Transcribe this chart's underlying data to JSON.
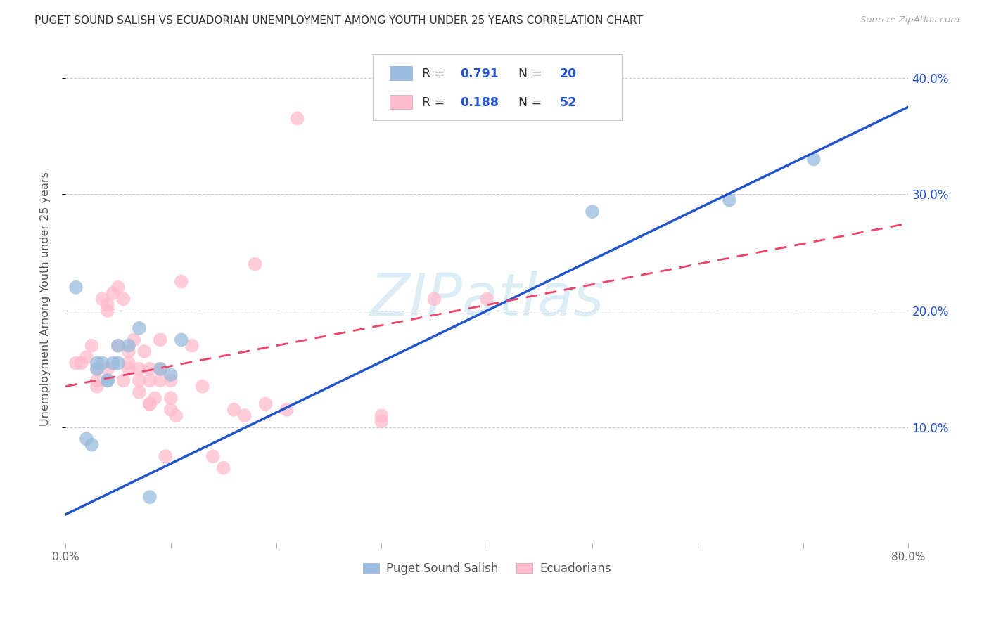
{
  "title": "PUGET SOUND SALISH VS ECUADORIAN UNEMPLOYMENT AMONG YOUTH UNDER 25 YEARS CORRELATION CHART",
  "source": "Source: ZipAtlas.com",
  "ylabel": "Unemployment Among Youth under 25 years",
  "xlim": [
    0.0,
    0.8
  ],
  "ylim": [
    0.0,
    0.42
  ],
  "xticks": [
    0.0,
    0.1,
    0.2,
    0.3,
    0.4,
    0.5,
    0.6,
    0.7,
    0.8
  ],
  "yticks_right": [
    0.1,
    0.2,
    0.3,
    0.4
  ],
  "yticklabels_right": [
    "10.0%",
    "20.0%",
    "30.0%",
    "40.0%"
  ],
  "grid_color": "#cccccc",
  "background_color": "#ffffff",
  "blue_color": "#99bbdd",
  "pink_color": "#ffbbcc",
  "blue_line_color": "#2255cc",
  "pink_line_color": "#ee4466",
  "title_color": "#333333",
  "source_color": "#aaaaaa",
  "R_blue": 0.791,
  "N_blue": 20,
  "R_pink": 0.188,
  "N_pink": 52,
  "blue_scatter_x": [
    0.01,
    0.02,
    0.025,
    0.03,
    0.03,
    0.035,
    0.04,
    0.04,
    0.045,
    0.05,
    0.05,
    0.06,
    0.07,
    0.08,
    0.09,
    0.1,
    0.11,
    0.5,
    0.63,
    0.71
  ],
  "blue_scatter_y": [
    0.22,
    0.09,
    0.085,
    0.15,
    0.155,
    0.155,
    0.14,
    0.14,
    0.155,
    0.155,
    0.17,
    0.17,
    0.185,
    0.04,
    0.15,
    0.145,
    0.175,
    0.285,
    0.295,
    0.33
  ],
  "pink_scatter_x": [
    0.01,
    0.015,
    0.02,
    0.025,
    0.03,
    0.03,
    0.03,
    0.035,
    0.04,
    0.04,
    0.04,
    0.045,
    0.05,
    0.05,
    0.055,
    0.055,
    0.06,
    0.06,
    0.06,
    0.065,
    0.07,
    0.07,
    0.07,
    0.075,
    0.08,
    0.08,
    0.08,
    0.08,
    0.085,
    0.09,
    0.09,
    0.09,
    0.095,
    0.1,
    0.1,
    0.1,
    0.105,
    0.11,
    0.12,
    0.13,
    0.14,
    0.15,
    0.16,
    0.17,
    0.18,
    0.19,
    0.21,
    0.22,
    0.3,
    0.3,
    0.35,
    0.4
  ],
  "pink_scatter_y": [
    0.155,
    0.155,
    0.16,
    0.17,
    0.15,
    0.14,
    0.135,
    0.21,
    0.2,
    0.205,
    0.15,
    0.215,
    0.17,
    0.22,
    0.14,
    0.21,
    0.15,
    0.155,
    0.165,
    0.175,
    0.14,
    0.13,
    0.15,
    0.165,
    0.12,
    0.12,
    0.14,
    0.15,
    0.125,
    0.14,
    0.15,
    0.175,
    0.075,
    0.14,
    0.125,
    0.115,
    0.11,
    0.225,
    0.17,
    0.135,
    0.075,
    0.065,
    0.115,
    0.11,
    0.24,
    0.12,
    0.115,
    0.365,
    0.105,
    0.11,
    0.21,
    0.21
  ],
  "legend_blue_label": "Puget Sound Salish",
  "legend_pink_label": "Ecuadorians",
  "watermark": "ZIPatlas",
  "watermark_color": "#bbddee",
  "watermark_alpha": 0.5,
  "blue_line_x0": 0.0,
  "blue_line_y0": 0.025,
  "blue_line_x1": 0.8,
  "blue_line_y1": 0.375,
  "pink_line_x0": 0.0,
  "pink_line_y0": 0.135,
  "pink_line_x1": 0.8,
  "pink_line_y1": 0.275
}
